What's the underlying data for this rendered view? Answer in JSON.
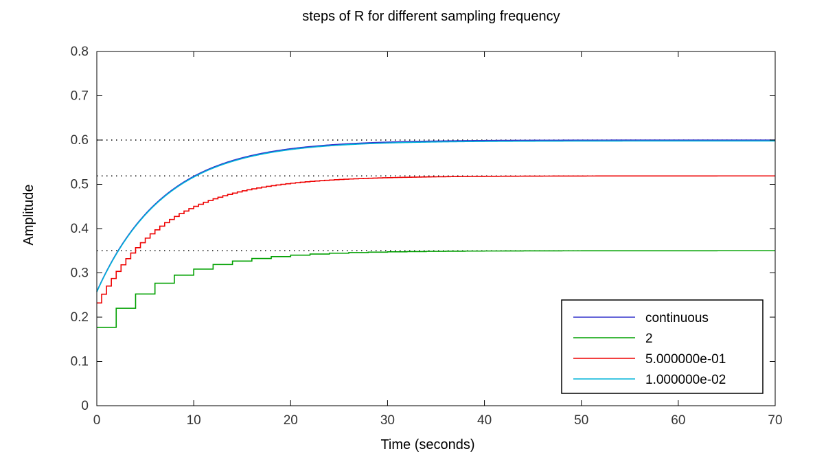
{
  "chart_data": {
    "type": "line",
    "title": "steps of R for different sampling frequency",
    "xlabel": "Time (seconds)",
    "ylabel": "Amplitude",
    "xlim": [
      0,
      70
    ],
    "ylim": [
      0,
      0.8
    ],
    "x_ticks": [
      0,
      10,
      20,
      30,
      40,
      50,
      60,
      70
    ],
    "y_ticks": [
      0,
      0.1,
      0.2,
      0.3,
      0.4,
      0.5,
      0.6,
      0.7,
      0.8
    ],
    "grid": false,
    "legend_position": "bottom-right",
    "steady_state_reference_lines": [
      0.6,
      0.519,
      0.35
    ],
    "series": [
      {
        "name": "continuous",
        "color": "#3333cc",
        "style": "continuous",
        "initial": 0.258,
        "final": 0.6,
        "time_constant": 7.0
      },
      {
        "name": "2",
        "color": "#00a000",
        "style": "step",
        "sample_time": 2,
        "initial": 0.177,
        "final": 0.35,
        "time_constant": 7.0
      },
      {
        "name": "5.000000e-01",
        "color": "#ee0000",
        "style": "step",
        "sample_time": 0.5,
        "initial": 0.232,
        "final": 0.519,
        "time_constant": 7.0
      },
      {
        "name": "1.000000e-02",
        "color": "#00b4d8",
        "style": "step",
        "sample_time": 0.01,
        "initial": 0.257,
        "final": 0.598,
        "time_constant": 7.0
      }
    ]
  }
}
